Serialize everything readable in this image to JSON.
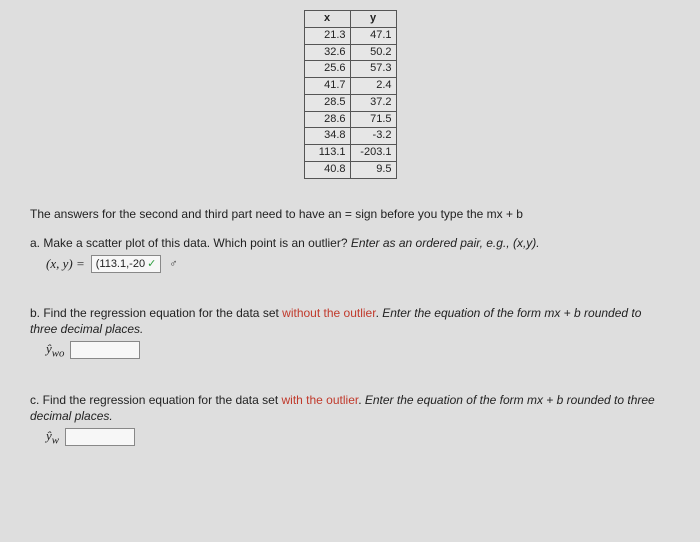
{
  "table": {
    "columns": [
      "x",
      "y"
    ],
    "rows": [
      [
        "21.3",
        "47.1"
      ],
      [
        "32.6",
        "50.2"
      ],
      [
        "25.6",
        "57.3"
      ],
      [
        "41.7",
        "2.4"
      ],
      [
        "28.5",
        "37.2"
      ],
      [
        "28.6",
        "71.5"
      ],
      [
        "34.8",
        "-3.2"
      ],
      [
        "113.1",
        "-203.1"
      ],
      [
        "40.8",
        "9.5"
      ]
    ],
    "border_color": "#555555",
    "cell_bg": "#e6e6e6",
    "font_size": 11
  },
  "instruction": "The answers for the second and third part need to have an = sign before you type the mx + b",
  "part_a": {
    "label_prefix": "a. Make a scatter plot of this data. Which point is an outlier? ",
    "label_ital": "Enter as an ordered pair, e.g., (x,y).",
    "xy": "(x, y) =",
    "input_value": "(113.1,-20",
    "has_check": true,
    "has_male": true
  },
  "part_b": {
    "label_lead": "b. Find the regression equation for the data set ",
    "red_text": "without the outlier",
    "label_tail": ". ",
    "ital_text": "Enter the equation of the form mx + b rounded to three decimal places.",
    "yhat_label": "ŷ",
    "yhat_sub": "wo",
    "input_value": ""
  },
  "part_c": {
    "label_lead": "c. Find the regression equation for the data set ",
    "red_text": "with the outlier",
    "label_tail": ". ",
    "ital_text": "Enter the equation of the form mx + b rounded to three decimal places.",
    "yhat_label": "ŷ",
    "yhat_sub": "w",
    "input_value": ""
  },
  "colors": {
    "page_bg": "#dedede",
    "red": "#c0392b",
    "check_green": "#2e9e3f"
  }
}
